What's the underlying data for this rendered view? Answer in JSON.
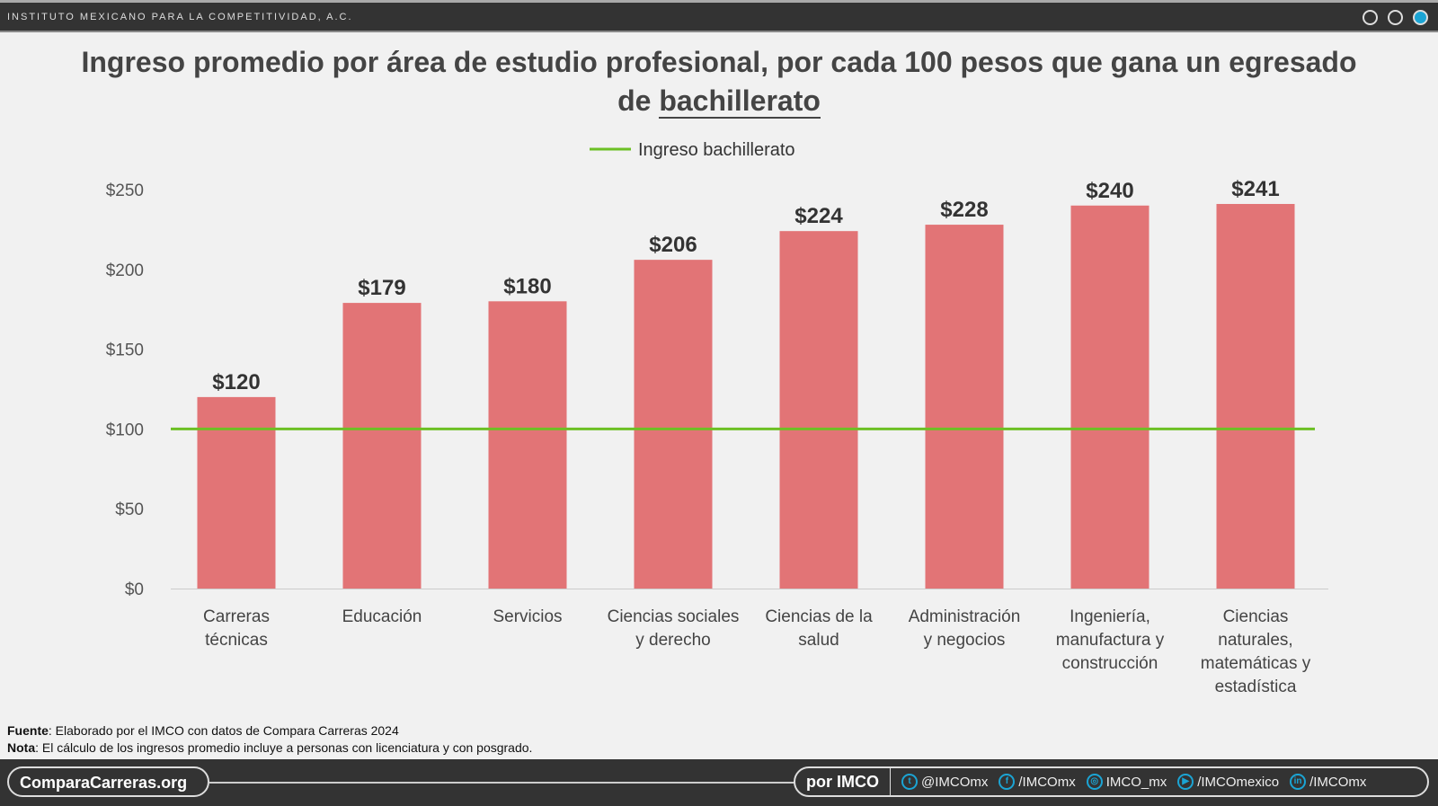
{
  "header": {
    "org": "INSTITUTO MEXICANO PARA LA COMPETITIVIDAD, A.C.",
    "dot_active_color": "#1ba4d4"
  },
  "chart_data": {
    "type": "bar",
    "title": "Ingreso promedio por área de estudio profesional, por cada 100 pesos que gana un egresado de bachillerato",
    "title_main": "Ingreso promedio por área de estudio profesional, por cada 100 pesos que gana un egresado",
    "title_de": "de ",
    "title_underlined": "bachillerato",
    "categories": [
      [
        "Carreras",
        "técnicas"
      ],
      [
        "Educación"
      ],
      [
        "Servicios"
      ],
      [
        "Ciencias sociales",
        "y derecho"
      ],
      [
        "Ciencias de la",
        "salud"
      ],
      [
        "Administración",
        "y negocios"
      ],
      [
        "Ingeniería,",
        "manufactura y",
        "construcción"
      ],
      [
        "Ciencias",
        "naturales,",
        "matemáticas y",
        "estadística"
      ]
    ],
    "values": [
      120,
      179,
      180,
      206,
      224,
      228,
      240,
      241
    ],
    "data_labels": [
      "$120",
      "$179",
      "$180",
      "$206",
      "$224",
      "$228",
      "$240",
      "$241"
    ],
    "bar_color": "#e27476",
    "ylim": [
      0,
      250
    ],
    "yticks": [
      0,
      50,
      100,
      150,
      200,
      250
    ],
    "ytick_labels": [
      "$0",
      "$50",
      "$100",
      "$150",
      "$200",
      "$250"
    ],
    "reference_line": {
      "name": "Ingreso bachillerato",
      "value": 100,
      "color": "#6cc024"
    },
    "legend_placement": "top-center",
    "grid": false
  },
  "notes": {
    "source_label": "Fuente",
    "source": ": Elaborado por el IMCO con datos de Compara Carreras 2024",
    "note_label": "Nota",
    "note": ": El cálculo de los ingresos promedio incluye a personas con licenciatura y con posgrado."
  },
  "footer": {
    "site": "ComparaCarreras.org",
    "por": "por IMCO",
    "social": [
      {
        "icon": "twitter-icon",
        "glyph": "t",
        "label": "@IMCOmx"
      },
      {
        "icon": "facebook-icon",
        "glyph": "f",
        "label": "/IMCOmx"
      },
      {
        "icon": "instagram-icon",
        "glyph": "◎",
        "label": "IMCO_mx"
      },
      {
        "icon": "youtube-icon",
        "glyph": "▶",
        "label": "/IMCOmexico"
      },
      {
        "icon": "linkedin-icon",
        "glyph": "in",
        "label": "/IMCOmx"
      }
    ]
  }
}
